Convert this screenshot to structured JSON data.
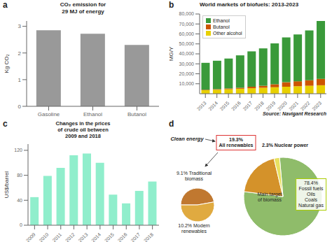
{
  "chart_data": [
    {
      "type": "bar",
      "title": "CO₂ emission for\n29 MJ of energy",
      "categories": [
        "Gasoline",
        "Ethanol",
        "Butanol"
      ],
      "values": [
        2.85,
        2.72,
        2.3
      ],
      "color": "#999999",
      "ylabel": "Kg CO₂",
      "ylim": [
        0,
        3.2
      ],
      "yticks": [
        0,
        1,
        2,
        3
      ],
      "annotations": [
        "a"
      ]
    },
    {
      "type": "bar",
      "title": "World markets of biofuels: 2013-2023",
      "categories": [
        "2013",
        "2014",
        "2015",
        "2016",
        "2017",
        "2018",
        "2019",
        "2020",
        "2021",
        "2022",
        "2023"
      ],
      "series": [
        {
          "name": "Other alcohol",
          "color": "#e8d000",
          "values": [
            3500,
            4000,
            4500,
            5000,
            5500,
            6000,
            6500,
            7000,
            7500,
            8000,
            8500
          ]
        },
        {
          "name": "Butanol",
          "color": "#cc5500",
          "values": [
            500,
            600,
            800,
            1000,
            1500,
            2000,
            3000,
            4500,
            5000,
            5500,
            6500
          ]
        },
        {
          "name": "Ethanol",
          "color": "#3a9a3a",
          "values": [
            27000,
            28500,
            30000,
            32500,
            35500,
            37500,
            41000,
            45000,
            47000,
            50000,
            58000
          ]
        }
      ],
      "stacked": true,
      "legend": "upper left",
      "ylabel": "MG/Y",
      "ylim": [
        0,
        80000
      ],
      "yticks": [
        {
          "value": 10000,
          "label": "10,000"
        },
        {
          "value": 20000,
          "label": "20,000"
        },
        {
          "value": 30000,
          "label": "30,000"
        },
        {
          "value": 40000,
          "label": "40,000"
        },
        {
          "value": 50000,
          "label": "50,000"
        },
        {
          "value": 60000,
          "label": "60,000"
        },
        {
          "value": 70000,
          "label": "70,000"
        },
        {
          "value": 80000,
          "label": "80,000"
        }
      ],
      "annotations": [
        "b",
        "Source: Navigant Research"
      ]
    },
    {
      "type": "bar",
      "title": "Changes in the prices\nof crude oil between\n2009 and 2018",
      "categories": [
        "2009",
        "2010",
        "2011",
        "2012",
        "2013",
        "2014",
        "2015",
        "2016",
        "2017",
        "2018"
      ],
      "values": [
        45,
        79,
        92,
        112,
        115,
        100,
        49,
        35,
        55,
        70
      ],
      "color": "#90eecc",
      "ylabel": "US$/barrel",
      "ylim": [
        0,
        130
      ],
      "yticks": [
        0,
        40,
        80,
        120
      ],
      "annotations": [
        "c"
      ]
    },
    {
      "type": "pie",
      "values": [
        78.4,
        19.3,
        2.3
      ],
      "colors": [
        "#8fbc6a",
        "#d4922a",
        "#e8e060"
      ],
      "annotations": [
        "d",
        "2.3% Nuclear power",
        "19.3%\nAll renewables",
        "Clean energy",
        "Main target\nof biomass",
        "78.4%\nFossil fuels\nOils\nCoals\nNatural gas"
      ]
    },
    {
      "type": "pie",
      "values": [
        9.1,
        10.2
      ],
      "colors": [
        "#c07830",
        "#e0aa40"
      ],
      "annotations": [
        "9.1% Traditional\nbiomass",
        "10.2% Modern\nrenewables"
      ]
    }
  ]
}
